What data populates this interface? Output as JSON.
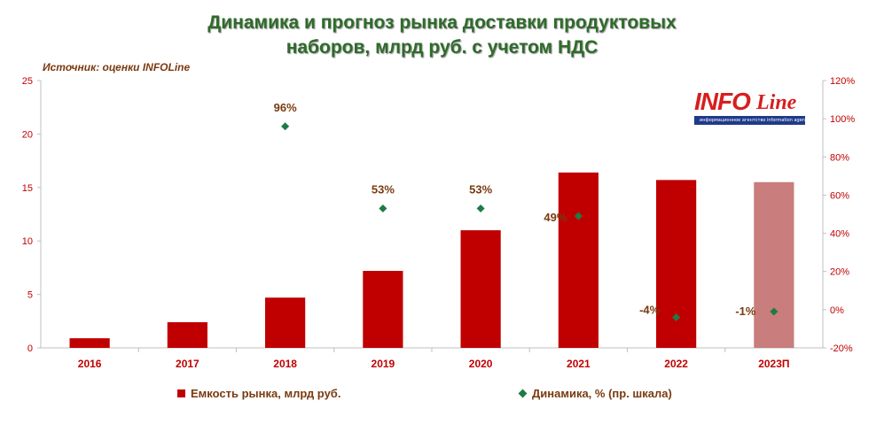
{
  "title_line1": "Динамика и прогноз рынка доставки продуктовых",
  "title_line2": "наборов, млрд руб. с учетом НДС",
  "source": "Источник: оценки INFOLine",
  "logo": {
    "word": "INFO",
    "word2": "Line",
    "tagline": "информационное агентство information agency"
  },
  "legend": {
    "bar": "Емкость рынка, млрд руб.",
    "marker": "Динамика, % (пр. шкала)"
  },
  "colors": {
    "bar": "#c00000",
    "bar_forecast": "#c97d7d",
    "marker": "#1e7b45",
    "axis_text": "#c00000",
    "label_text": "#7a3a10"
  },
  "chart_data": {
    "type": "bar",
    "title": "Динамика и прогноз рынка доставки продуктовых наборов, млрд руб. с учетом НДС",
    "categories": [
      "2016",
      "2017",
      "2018",
      "2019",
      "2020",
      "2021",
      "2022",
      "2023П"
    ],
    "series": [
      {
        "name": "Емкость рынка, млрд руб.",
        "type": "bar",
        "axis": "left",
        "values": [
          0.9,
          2.4,
          4.7,
          7.2,
          11.0,
          16.4,
          15.7,
          15.5
        ]
      },
      {
        "name": "Динамика, % (пр. шкала)",
        "type": "scatter",
        "axis": "right",
        "values": [
          null,
          null,
          96,
          53,
          53,
          49,
          -4,
          -1
        ],
        "labels": [
          "",
          "",
          "96%",
          "53%",
          "53%",
          "49%",
          "-4%",
          "-1%"
        ]
      }
    ],
    "forecast_category": "2023П",
    "ylim": [
      0,
      25
    ],
    "yticks": [
      0,
      5,
      10,
      15,
      20,
      25
    ],
    "y2lim": [
      -20,
      120
    ],
    "y2ticks": [
      "-20%",
      "0%",
      "20%",
      "40%",
      "60%",
      "80%",
      "100%",
      "120%"
    ],
    "y2tick_values": [
      -20,
      0,
      20,
      40,
      60,
      80,
      100,
      120
    ],
    "grid": false,
    "legend_position": "bottom"
  }
}
